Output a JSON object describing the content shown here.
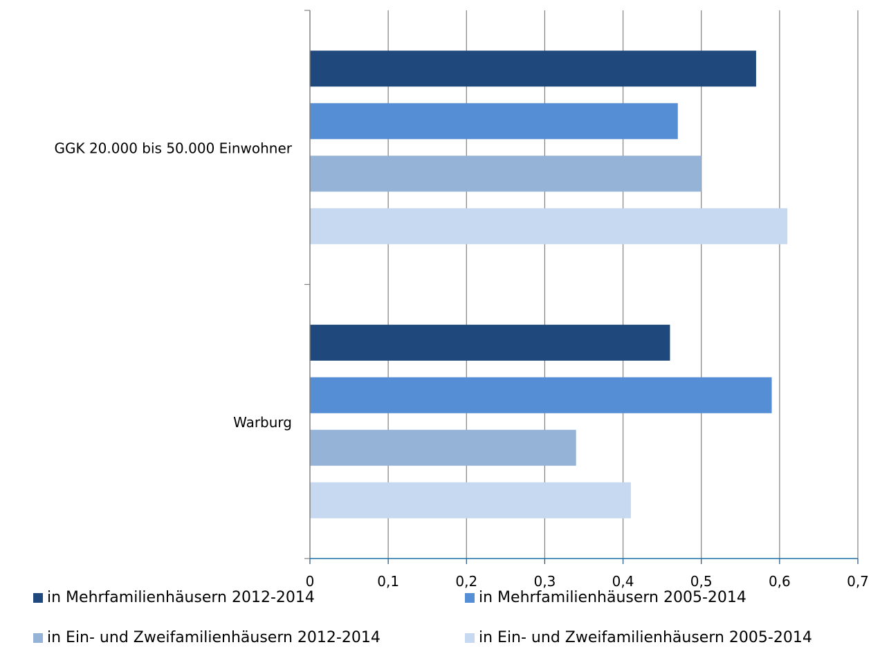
{
  "chart_data": {
    "type": "bar",
    "orientation": "horizontal",
    "categories": [
      "GGK 20.000 bis 50.000 Einwohner",
      "Warburg"
    ],
    "series": [
      {
        "name": "in Mehrfamilienhäusern 2012-2014",
        "color": "#1f497d",
        "values": [
          0.57,
          0.46
        ]
      },
      {
        "name": "in Mehrfamilienhäusern 2005-2014",
        "color": "#558ed5",
        "values": [
          0.47,
          0.59
        ]
      },
      {
        "name": "in Ein- und Zweifamilienhäusern 2012-2014",
        "color": "#95b3d7",
        "values": [
          0.5,
          0.34
        ]
      },
      {
        "name": "in Ein- und Zweifamilienhäusern 2005-2014",
        "color": "#c6d9f1",
        "values": [
          0.61,
          0.41
        ]
      }
    ],
    "xlim": [
      0,
      0.7
    ],
    "xticks": [
      "0",
      "0,1",
      "0,2",
      "0,3",
      "0,4",
      "0,5",
      "0,6",
      "0,7"
    ],
    "grid": true,
    "legend_position": "bottom"
  }
}
